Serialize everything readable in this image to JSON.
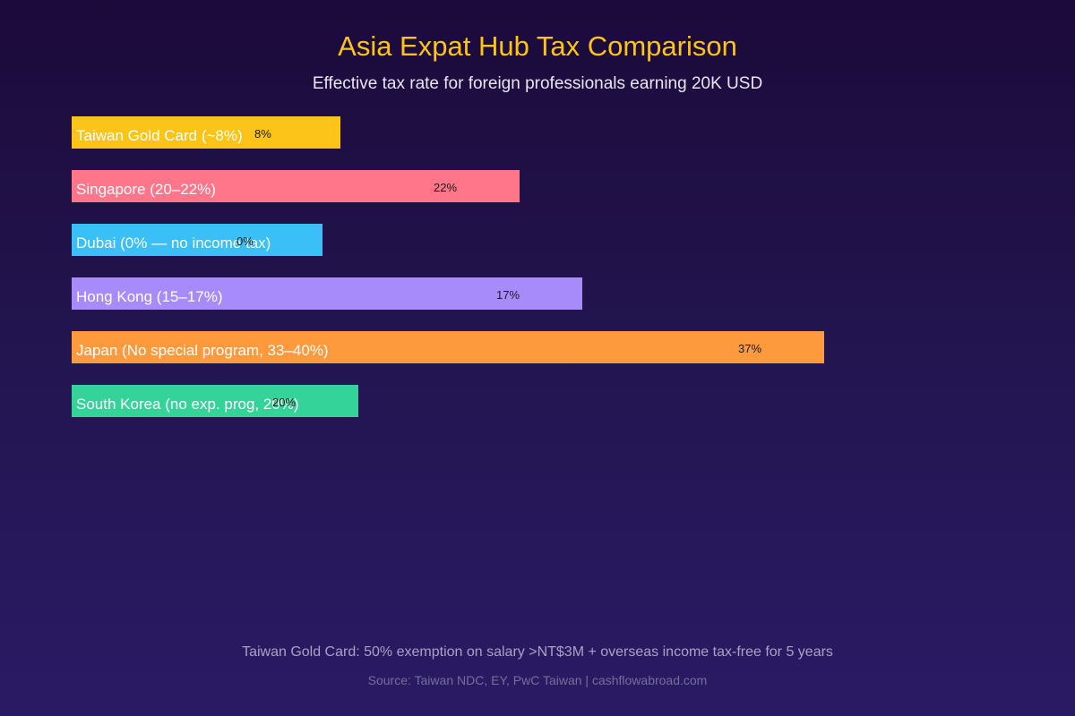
{
  "chart_data": {
    "type": "bar",
    "orientation": "horizontal",
    "title": "Asia Expat Hub Tax Comparison",
    "subtitle": "Effective tax rate for foreign professionals earning 20K USD",
    "categories": [
      "Taiwan Gold Card (~8%)",
      "Singapore (20–22%)",
      "Dubai (0% — no income tax)",
      "Hong Kong (15–17%)",
      "Japan (No special program, 33–40%)",
      "South Korea (no exp. prog, 20%)"
    ],
    "values": [
      8,
      22,
      0,
      17,
      37,
      20
    ],
    "value_labels": [
      "8%",
      "22%",
      "0%",
      "17%",
      "37%",
      "20%"
    ],
    "bar_lengths": [
      30,
      50,
      28,
      57,
      84,
      32
    ],
    "colors": [
      "#fcc419",
      "#ff7589",
      "#3bbff7",
      "#a78bfa",
      "#fd9a3e",
      "#34d399"
    ],
    "legend": false,
    "grid": false,
    "footnote": "Taiwan Gold Card: 50% exemption on salary >NT$3M + overseas income tax-free for 5 years",
    "source": "Source: Taiwan NDC, EY, PwC Taiwan | cashflowabroad.com"
  }
}
